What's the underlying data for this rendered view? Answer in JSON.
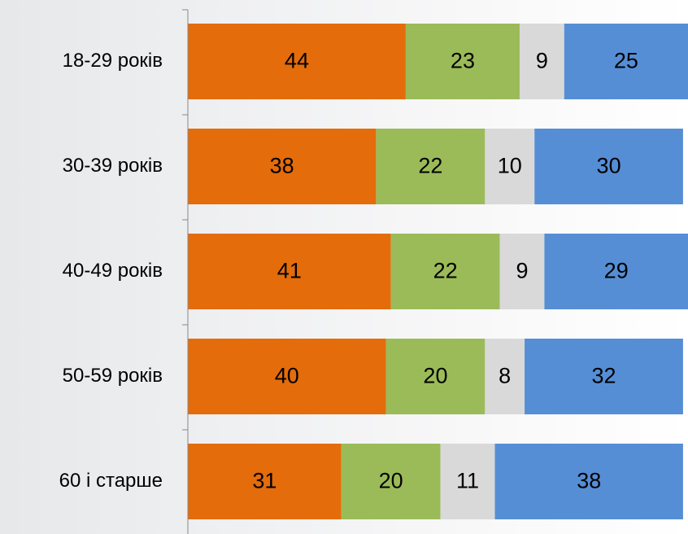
{
  "chart_data": {
    "type": "stacked_bar_horizontal",
    "categories": [
      "18-29 років",
      "30-39 років",
      "40-49 років",
      "50-59 років",
      "60 і старше"
    ],
    "series": [
      {
        "color": "#e46c0a",
        "values": [
          44,
          38,
          41,
          40,
          31
        ]
      },
      {
        "color": "#9bbb59",
        "values": [
          23,
          22,
          22,
          20,
          20
        ]
      },
      {
        "color": "#d9d9d9",
        "values": [
          9,
          10,
          9,
          8,
          11
        ]
      },
      {
        "color": "#558ed5",
        "values": [
          25,
          30,
          29,
          32,
          38
        ]
      }
    ],
    "xlim": [
      0,
      101
    ]
  }
}
